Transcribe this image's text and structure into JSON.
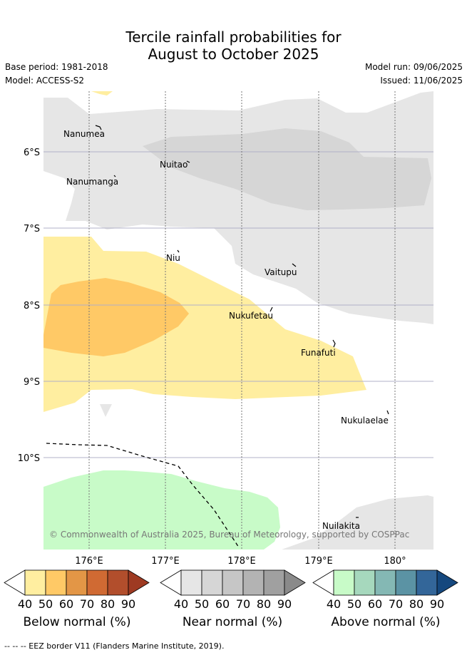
{
  "title_line1": "Tercile rainfall probabilities for",
  "title_line2": "August to October 2025",
  "base_period": "Base period: 1981-2018",
  "model": "Model: ACCESS-S2",
  "model_run": "Model run: 09/06/2025",
  "issued": "Issued: 11/06/2025",
  "copyright": "© Commonwealth of Australia 2025, Bureau of Meteorology, supported by COSPPac",
  "footer": "-- -- -- EEZ border V11 (Flanders Marine Institute, 2019).",
  "lat_labels": [
    "6°S",
    "7°S",
    "8°S",
    "9°S",
    "10°S"
  ],
  "lon_labels": [
    "176°E",
    "177°E",
    "178°E",
    "179°E",
    "180°"
  ],
  "islands": [
    "Nanumea",
    "Nuitao",
    "Nanumanga",
    "Niu",
    "Vaitupu",
    "Nukufetau",
    "Funafuti",
    "Nukulaelae",
    "Nuilakita"
  ],
  "colorbars": [
    {
      "label": "Below normal (%)",
      "ticks": [
        "40",
        "50",
        "60",
        "70",
        "80",
        "90"
      ],
      "colors": [
        "#ffeea0",
        "#ffc966",
        "#e39646",
        "#d06a33",
        "#b24e2c",
        "#9e3a22"
      ]
    },
    {
      "label": "Near normal (%)",
      "ticks": [
        "40",
        "50",
        "60",
        "70",
        "80",
        "90"
      ],
      "colors": [
        "#e6e6e6",
        "#d6d6d6",
        "#c6c6c6",
        "#b3b3b3",
        "#a0a0a0",
        "#8a8a8a"
      ]
    },
    {
      "label": "Above normal (%)",
      "ticks": [
        "40",
        "50",
        "60",
        "70",
        "80",
        "90"
      ],
      "colors": [
        "#c8fbc8",
        "#a6d8bd",
        "#84b8b4",
        "#5b93a4",
        "#336699",
        "#15487e"
      ]
    }
  ]
}
